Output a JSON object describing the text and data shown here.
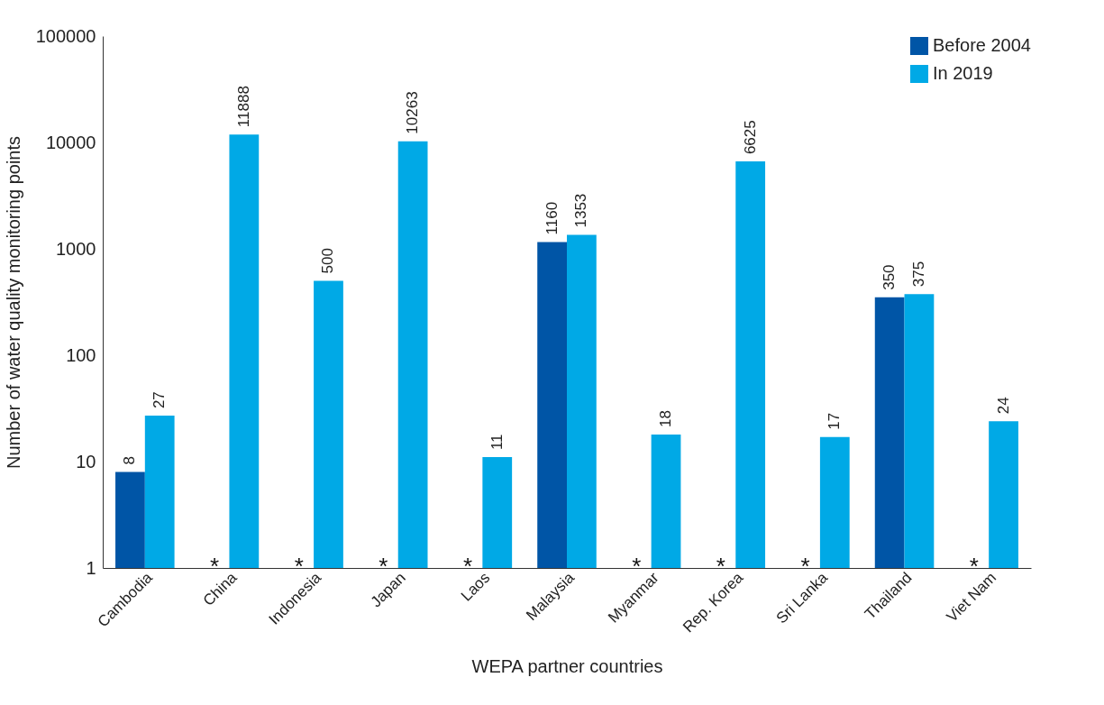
{
  "chart_data": {
    "type": "bar",
    "xlabel": "WEPA partner countries",
    "ylabel": "Number of water quality monitoring points",
    "categories": [
      "Cambodia",
      "China",
      "Indonesia",
      "Japan",
      "Laos",
      "Malaysia",
      "Myanmar",
      "Rep. Korea",
      "Sri Lanka",
      "Thailand",
      "Viet Nam"
    ],
    "series": [
      {
        "name": "Before 2004",
        "color": "#0055a6",
        "values": [
          8,
          null,
          null,
          null,
          null,
          1160,
          null,
          null,
          null,
          350,
          null
        ]
      },
      {
        "name": "In 2019",
        "color": "#00a9e6",
        "values": [
          27,
          11888,
          500,
          10263,
          11,
          1353,
          18,
          6625,
          17,
          375,
          24
        ]
      }
    ],
    "log": true,
    "ylim": [
      1,
      100000
    ],
    "yticks": [
      1,
      10,
      100,
      1000,
      10000,
      100000
    ],
    "data_labels": true,
    "grid": false,
    "legend": "top right",
    "annotations": [
      "*",
      "*",
      "*",
      "*",
      "*",
      "*",
      "*",
      "*"
    ]
  }
}
